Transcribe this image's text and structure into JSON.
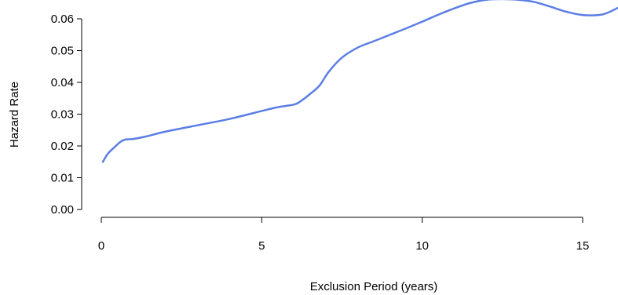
{
  "chart_data": {
    "type": "line",
    "title": "",
    "xlabel": "Exclusion Period (years)",
    "ylabel": "Hazard Rate",
    "xlim": [
      0,
      16.2
    ],
    "ylim": [
      0,
      0.066
    ],
    "x_ticks": [
      0,
      5,
      10,
      15
    ],
    "y_ticks": [
      "0.00",
      "0.01",
      "0.02",
      "0.03",
      "0.04",
      "0.05",
      "0.06"
    ],
    "grid": false,
    "line_color": "#5b7ee5",
    "series": [
      {
        "x": [
          0.05,
          0.2,
          0.4,
          0.6,
          0.75,
          1.0,
          1.4,
          2.0,
          3.0,
          4.0,
          5.0,
          5.5,
          6.0,
          6.2,
          6.5,
          6.8,
          7.1,
          7.5,
          8.0,
          8.5,
          9.0,
          9.5,
          10.0,
          10.5,
          11.0,
          11.5,
          12.0,
          12.5,
          13.0,
          13.5,
          14.0,
          14.5,
          15.0,
          15.5,
          15.8,
          16.2
        ],
        "y": [
          0.015,
          0.0175,
          0.0195,
          0.0213,
          0.022,
          0.0222,
          0.023,
          0.0245,
          0.0265,
          0.0285,
          0.031,
          0.0322,
          0.033,
          0.034,
          0.0363,
          0.039,
          0.0435,
          0.0478,
          0.051,
          0.053,
          0.055,
          0.057,
          0.0591,
          0.0613,
          0.0633,
          0.065,
          0.066,
          0.0662,
          0.066,
          0.0653,
          0.0638,
          0.0622,
          0.0612,
          0.0612,
          0.062,
          0.064
        ]
      }
    ]
  }
}
